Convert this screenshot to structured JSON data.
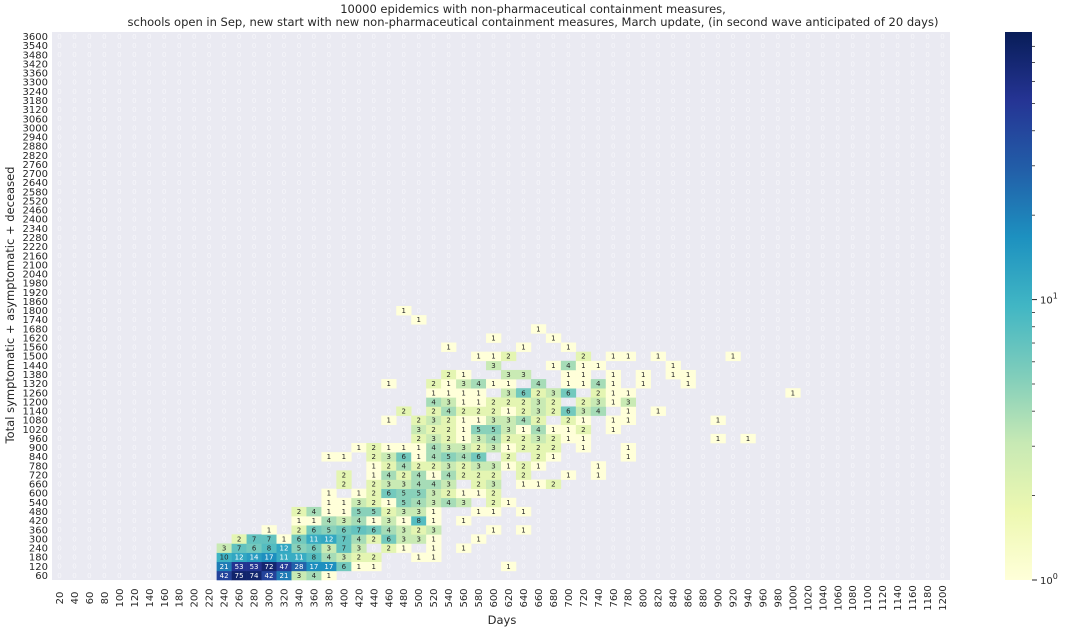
{
  "chart_data": {
    "type": "heatmap",
    "title_lines": [
      "10000 epidemics with non-pharmaceutical containment measures,",
      "schools open in Sep, new start with new non-pharmaceutical containment measures, March update, (in second wave anticipated of 20 days)"
    ],
    "xlabel": "Days",
    "ylabel": "Total symptomatic + asymptomatic + deceased",
    "x_categories": [
      20,
      40,
      60,
      80,
      100,
      120,
      140,
      160,
      180,
      200,
      220,
      240,
      260,
      280,
      300,
      320,
      340,
      360,
      380,
      400,
      420,
      440,
      460,
      480,
      500,
      520,
      540,
      560,
      580,
      600,
      620,
      640,
      660,
      680,
      700,
      720,
      740,
      760,
      780,
      800,
      820,
      840,
      860,
      880,
      900,
      920,
      940,
      960,
      980,
      1000,
      1020,
      1040,
      1060,
      1080,
      1100,
      1120,
      1140,
      1160,
      1180,
      1200
    ],
    "y_categories": [
      60,
      120,
      180,
      240,
      300,
      360,
      420,
      480,
      540,
      600,
      660,
      720,
      780,
      840,
      900,
      960,
      1020,
      1080,
      1140,
      1200,
      1260,
      1320,
      1380,
      1440,
      1500,
      1560,
      1620,
      1680,
      1740,
      1800,
      1860,
      1920,
      1980,
      2040,
      2100,
      2160,
      2220,
      2280,
      2340,
      2400,
      2460,
      2520,
      2580,
      2640,
      2700,
      2760,
      2820,
      2880,
      2940,
      3000,
      3060,
      3120,
      3180,
      3240,
      3300,
      3360,
      3420,
      3480,
      3540,
      3600
    ],
    "color_scale": "log",
    "colormap": [
      "#ffffd9",
      "#edf8b1",
      "#c7e9b4",
      "#7fcdbb",
      "#41b6c4",
      "#1d91c0",
      "#225ea8",
      "#253494",
      "#081d58"
    ],
    "colorbar_ticks": [
      "10^0",
      "10^1"
    ],
    "vmin": 1,
    "vmax": 90,
    "grid": false,
    "empty_cell_label": "0",
    "cells": [
      [
        240,
        60,
        42
      ],
      [
        260,
        60,
        75
      ],
      [
        280,
        60,
        74
      ],
      [
        300,
        60,
        42
      ],
      [
        320,
        60,
        21
      ],
      [
        340,
        60,
        3
      ],
      [
        360,
        60,
        4
      ],
      [
        380,
        60,
        1
      ],
      [
        240,
        120,
        21
      ],
      [
        260,
        120,
        53
      ],
      [
        280,
        120,
        53
      ],
      [
        300,
        120,
        72
      ],
      [
        320,
        120,
        47
      ],
      [
        340,
        120,
        28
      ],
      [
        360,
        120,
        17
      ],
      [
        380,
        120,
        17
      ],
      [
        400,
        120,
        6
      ],
      [
        420,
        120,
        1
      ],
      [
        440,
        120,
        1
      ],
      [
        620,
        120,
        1
      ],
      [
        240,
        180,
        10
      ],
      [
        260,
        180,
        12
      ],
      [
        280,
        180,
        14
      ],
      [
        300,
        180,
        17
      ],
      [
        320,
        180,
        11
      ],
      [
        340,
        180,
        11
      ],
      [
        360,
        180,
        8
      ],
      [
        380,
        180,
        4
      ],
      [
        400,
        180,
        3
      ],
      [
        420,
        180,
        2
      ],
      [
        440,
        180,
        2
      ],
      [
        500,
        180,
        1
      ],
      [
        520,
        180,
        1
      ],
      [
        240,
        240,
        3
      ],
      [
        260,
        240,
        7
      ],
      [
        280,
        240,
        6
      ],
      [
        300,
        240,
        8
      ],
      [
        320,
        240,
        12
      ],
      [
        340,
        240,
        5
      ],
      [
        360,
        240,
        6
      ],
      [
        380,
        240,
        3
      ],
      [
        400,
        240,
        7
      ],
      [
        420,
        240,
        3
      ],
      [
        460,
        240,
        2
      ],
      [
        480,
        240,
        1
      ],
      [
        520,
        240,
        1
      ],
      [
        560,
        240,
        1
      ],
      [
        260,
        300,
        2
      ],
      [
        280,
        300,
        7
      ],
      [
        300,
        300,
        7
      ],
      [
        320,
        300,
        1
      ],
      [
        340,
        300,
        6
      ],
      [
        360,
        300,
        11
      ],
      [
        380,
        300,
        12
      ],
      [
        400,
        300,
        7
      ],
      [
        420,
        300,
        4
      ],
      [
        440,
        300,
        2
      ],
      [
        460,
        300,
        6
      ],
      [
        480,
        300,
        3
      ],
      [
        500,
        300,
        3
      ],
      [
        520,
        300,
        1
      ],
      [
        580,
        300,
        1
      ],
      [
        300,
        360,
        1
      ],
      [
        340,
        360,
        2
      ],
      [
        360,
        360,
        6
      ],
      [
        380,
        360,
        5
      ],
      [
        400,
        360,
        6
      ],
      [
        420,
        360,
        7
      ],
      [
        440,
        360,
        6
      ],
      [
        460,
        360,
        4
      ],
      [
        480,
        360,
        3
      ],
      [
        500,
        360,
        2
      ],
      [
        520,
        360,
        3
      ],
      [
        600,
        360,
        1
      ],
      [
        640,
        360,
        1
      ],
      [
        340,
        420,
        1
      ],
      [
        360,
        420,
        1
      ],
      [
        380,
        420,
        4
      ],
      [
        400,
        420,
        3
      ],
      [
        420,
        420,
        4
      ],
      [
        440,
        420,
        1
      ],
      [
        460,
        420,
        3
      ],
      [
        480,
        420,
        1
      ],
      [
        500,
        420,
        8
      ],
      [
        520,
        420,
        1
      ],
      [
        560,
        420,
        1
      ],
      [
        340,
        480,
        2
      ],
      [
        360,
        480,
        4
      ],
      [
        380,
        480,
        1
      ],
      [
        400,
        480,
        1
      ],
      [
        420,
        480,
        5
      ],
      [
        440,
        480,
        5
      ],
      [
        460,
        480,
        2
      ],
      [
        480,
        480,
        3
      ],
      [
        500,
        480,
        3
      ],
      [
        520,
        480,
        1
      ],
      [
        580,
        480,
        1
      ],
      [
        600,
        480,
        1
      ],
      [
        640,
        480,
        1
      ],
      [
        380,
        540,
        1
      ],
      [
        400,
        540,
        1
      ],
      [
        420,
        540,
        3
      ],
      [
        440,
        540,
        2
      ],
      [
        460,
        540,
        1
      ],
      [
        480,
        540,
        5
      ],
      [
        500,
        540,
        4
      ],
      [
        520,
        540,
        3
      ],
      [
        540,
        540,
        4
      ],
      [
        560,
        540,
        3
      ],
      [
        600,
        540,
        2
      ],
      [
        620,
        540,
        1
      ],
      [
        380,
        600,
        1
      ],
      [
        420,
        600,
        1
      ],
      [
        440,
        600,
        2
      ],
      [
        460,
        600,
        6
      ],
      [
        480,
        600,
        5
      ],
      [
        500,
        600,
        5
      ],
      [
        520,
        600,
        3
      ],
      [
        540,
        600,
        2
      ],
      [
        560,
        600,
        1
      ],
      [
        580,
        600,
        1
      ],
      [
        600,
        600,
        2
      ],
      [
        400,
        660,
        2
      ],
      [
        440,
        660,
        2
      ],
      [
        460,
        660,
        3
      ],
      [
        480,
        660,
        3
      ],
      [
        500,
        660,
        4
      ],
      [
        520,
        660,
        4
      ],
      [
        540,
        660,
        3
      ],
      [
        580,
        660,
        2
      ],
      [
        600,
        660,
        3
      ],
      [
        640,
        660,
        1
      ],
      [
        660,
        660,
        1
      ],
      [
        680,
        660,
        2
      ],
      [
        400,
        720,
        2
      ],
      [
        440,
        720,
        1
      ],
      [
        460,
        720,
        4
      ],
      [
        480,
        720,
        2
      ],
      [
        500,
        720,
        4
      ],
      [
        520,
        720,
        1
      ],
      [
        540,
        720,
        4
      ],
      [
        560,
        720,
        2
      ],
      [
        580,
        720,
        2
      ],
      [
        600,
        720,
        2
      ],
      [
        640,
        720,
        2
      ],
      [
        700,
        720,
        1
      ],
      [
        740,
        720,
        1
      ],
      [
        440,
        780,
        1
      ],
      [
        460,
        780,
        2
      ],
      [
        480,
        780,
        4
      ],
      [
        500,
        780,
        2
      ],
      [
        520,
        780,
        2
      ],
      [
        540,
        780,
        3
      ],
      [
        560,
        780,
        2
      ],
      [
        580,
        780,
        3
      ],
      [
        600,
        780,
        3
      ],
      [
        620,
        780,
        1
      ],
      [
        640,
        780,
        2
      ],
      [
        660,
        780,
        1
      ],
      [
        740,
        780,
        1
      ],
      [
        380,
        840,
        1
      ],
      [
        400,
        840,
        1
      ],
      [
        440,
        840,
        2
      ],
      [
        460,
        840,
        3
      ],
      [
        480,
        840,
        6
      ],
      [
        500,
        840,
        1
      ],
      [
        520,
        840,
        4
      ],
      [
        540,
        840,
        5
      ],
      [
        560,
        840,
        4
      ],
      [
        580,
        840,
        6
      ],
      [
        620,
        840,
        2
      ],
      [
        660,
        840,
        2
      ],
      [
        680,
        840,
        1
      ],
      [
        780,
        840,
        1
      ],
      [
        420,
        900,
        1
      ],
      [
        440,
        900,
        2
      ],
      [
        460,
        900,
        1
      ],
      [
        480,
        900,
        1
      ],
      [
        500,
        900,
        1
      ],
      [
        520,
        900,
        4
      ],
      [
        540,
        900,
        3
      ],
      [
        560,
        900,
        3
      ],
      [
        580,
        900,
        2
      ],
      [
        600,
        900,
        3
      ],
      [
        620,
        900,
        1
      ],
      [
        640,
        900,
        2
      ],
      [
        660,
        900,
        2
      ],
      [
        680,
        900,
        2
      ],
      [
        720,
        900,
        1
      ],
      [
        780,
        900,
        1
      ],
      [
        500,
        960,
        2
      ],
      [
        520,
        960,
        3
      ],
      [
        540,
        960,
        2
      ],
      [
        560,
        960,
        1
      ],
      [
        580,
        960,
        3
      ],
      [
        600,
        960,
        4
      ],
      [
        620,
        960,
        2
      ],
      [
        640,
        960,
        2
      ],
      [
        660,
        960,
        3
      ],
      [
        680,
        960,
        2
      ],
      [
        700,
        960,
        1
      ],
      [
        720,
        960,
        1
      ],
      [
        900,
        960,
        1
      ],
      [
        940,
        960,
        1
      ],
      [
        500,
        1020,
        3
      ],
      [
        520,
        1020,
        2
      ],
      [
        540,
        1020,
        2
      ],
      [
        560,
        1020,
        1
      ],
      [
        580,
        1020,
        5
      ],
      [
        600,
        1020,
        5
      ],
      [
        620,
        1020,
        3
      ],
      [
        640,
        1020,
        1
      ],
      [
        660,
        1020,
        4
      ],
      [
        680,
        1020,
        1
      ],
      [
        700,
        1020,
        1
      ],
      [
        720,
        1020,
        2
      ],
      [
        760,
        1020,
        1
      ],
      [
        460,
        1080,
        1
      ],
      [
        500,
        1080,
        2
      ],
      [
        520,
        1080,
        3
      ],
      [
        540,
        1080,
        2
      ],
      [
        560,
        1080,
        1
      ],
      [
        580,
        1080,
        1
      ],
      [
        600,
        1080,
        3
      ],
      [
        620,
        1080,
        3
      ],
      [
        640,
        1080,
        4
      ],
      [
        660,
        1080,
        2
      ],
      [
        700,
        1080,
        2
      ],
      [
        720,
        1080,
        1
      ],
      [
        760,
        1080,
        1
      ],
      [
        780,
        1080,
        1
      ],
      [
        900,
        1080,
        1
      ],
      [
        480,
        1140,
        2
      ],
      [
        520,
        1140,
        2
      ],
      [
        540,
        1140,
        4
      ],
      [
        560,
        1140,
        2
      ],
      [
        580,
        1140,
        2
      ],
      [
        600,
        1140,
        2
      ],
      [
        620,
        1140,
        1
      ],
      [
        640,
        1140,
        2
      ],
      [
        660,
        1140,
        3
      ],
      [
        680,
        1140,
        2
      ],
      [
        700,
        1140,
        6
      ],
      [
        720,
        1140,
        3
      ],
      [
        740,
        1140,
        4
      ],
      [
        780,
        1140,
        1
      ],
      [
        820,
        1140,
        1
      ],
      [
        520,
        1200,
        4
      ],
      [
        540,
        1200,
        3
      ],
      [
        560,
        1200,
        1
      ],
      [
        580,
        1200,
        1
      ],
      [
        600,
        1200,
        2
      ],
      [
        620,
        1200,
        2
      ],
      [
        640,
        1200,
        2
      ],
      [
        660,
        1200,
        3
      ],
      [
        680,
        1200,
        2
      ],
      [
        720,
        1200,
        2
      ],
      [
        740,
        1200,
        3
      ],
      [
        760,
        1200,
        1
      ],
      [
        780,
        1200,
        3
      ],
      [
        520,
        1260,
        1
      ],
      [
        540,
        1260,
        1
      ],
      [
        560,
        1260,
        1
      ],
      [
        580,
        1260,
        1
      ],
      [
        620,
        1260,
        3
      ],
      [
        640,
        1260,
        6
      ],
      [
        660,
        1260,
        2
      ],
      [
        680,
        1260,
        3
      ],
      [
        700,
        1260,
        6
      ],
      [
        740,
        1260,
        2
      ],
      [
        760,
        1260,
        1
      ],
      [
        780,
        1260,
        1
      ],
      [
        1000,
        1260,
        1
      ],
      [
        460,
        1320,
        1
      ],
      [
        520,
        1320,
        2
      ],
      [
        540,
        1320,
        1
      ],
      [
        560,
        1320,
        3
      ],
      [
        580,
        1320,
        4
      ],
      [
        600,
        1320,
        1
      ],
      [
        620,
        1320,
        1
      ],
      [
        660,
        1320,
        4
      ],
      [
        700,
        1320,
        1
      ],
      [
        720,
        1320,
        1
      ],
      [
        740,
        1320,
        4
      ],
      [
        760,
        1320,
        1
      ],
      [
        800,
        1320,
        1
      ],
      [
        860,
        1320,
        1
      ],
      [
        540,
        1380,
        2
      ],
      [
        560,
        1380,
        1
      ],
      [
        620,
        1380,
        3
      ],
      [
        640,
        1380,
        3
      ],
      [
        700,
        1380,
        1
      ],
      [
        720,
        1380,
        1
      ],
      [
        760,
        1380,
        1
      ],
      [
        800,
        1380,
        1
      ],
      [
        840,
        1380,
        1
      ],
      [
        860,
        1380,
        1
      ],
      [
        600,
        1440,
        3
      ],
      [
        680,
        1440,
        1
      ],
      [
        700,
        1440,
        4
      ],
      [
        720,
        1440,
        1
      ],
      [
        740,
        1440,
        1
      ],
      [
        840,
        1440,
        1
      ],
      [
        580,
        1500,
        1
      ],
      [
        600,
        1500,
        1
      ],
      [
        620,
        1500,
        2
      ],
      [
        720,
        1500,
        2
      ],
      [
        760,
        1500,
        1
      ],
      [
        780,
        1500,
        1
      ],
      [
        820,
        1500,
        1
      ],
      [
        920,
        1500,
        1
      ],
      [
        540,
        1560,
        1
      ],
      [
        640,
        1560,
        1
      ],
      [
        700,
        1560,
        1
      ],
      [
        600,
        1620,
        1
      ],
      [
        680,
        1620,
        1
      ],
      [
        660,
        1680,
        1
      ],
      [
        500,
        1740,
        1
      ],
      [
        480,
        1800,
        1
      ]
    ]
  }
}
